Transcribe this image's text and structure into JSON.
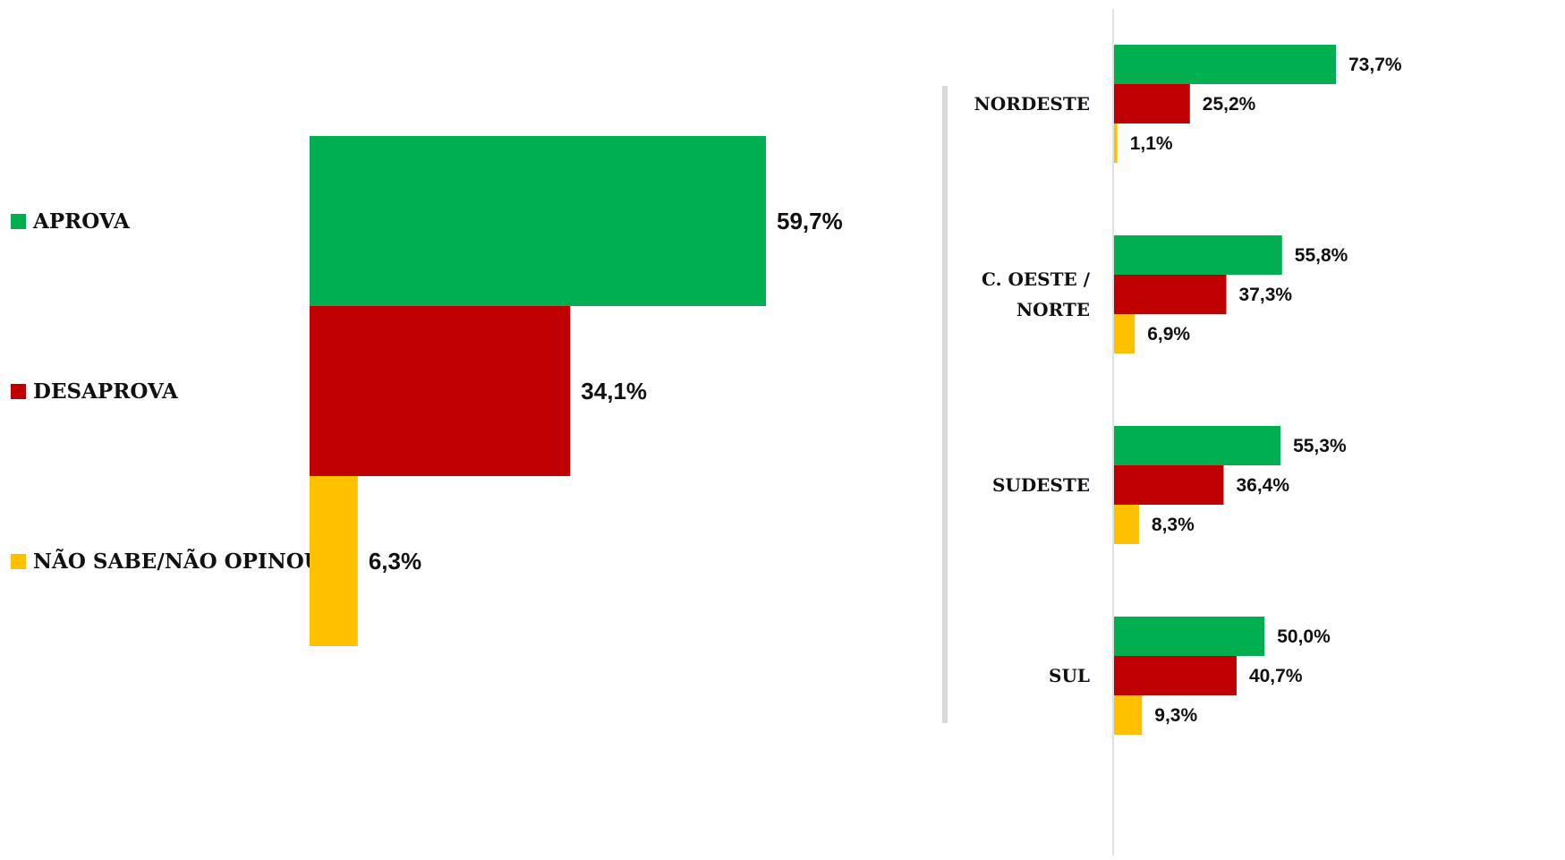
{
  "colors": {
    "aprova": "#00B050",
    "desaprova": "#C00000",
    "nao_sabe": "#FFC000",
    "divider": "#D9D9D9",
    "axis": "#D9D9D9"
  },
  "legend": [
    {
      "label": "APROVA",
      "color_key": "aprova"
    },
    {
      "label": "DESAPROVA",
      "color_key": "desaprova"
    },
    {
      "label": "NÃO SABE/NÃO OPINOU",
      "color_key": "nao_sabe"
    }
  ],
  "chart_data": [
    {
      "type": "bar",
      "orientation": "horizontal",
      "categories": [
        "APROVA",
        "DESAPROVA",
        "NÃO SABE/NÃO OPINOU"
      ],
      "values": [
        59.7,
        34.1,
        6.3
      ],
      "value_labels": [
        "59,7%",
        "34,1%",
        "6,3%"
      ],
      "legend_placement": "left",
      "grid": false
    },
    {
      "type": "bar",
      "orientation": "horizontal",
      "categories": [
        [
          "NORDESTE"
        ],
        [
          "C. OESTE /",
          "NORTE"
        ],
        [
          "SUDESTE"
        ],
        [
          "SUL"
        ]
      ],
      "series": [
        {
          "name": "APROVA",
          "values": [
            73.7,
            55.8,
            55.3,
            50.0
          ],
          "labels": [
            "73,7%",
            "55,8%",
            "55,3%",
            "50,0%"
          ]
        },
        {
          "name": "DESAPROVA",
          "values": [
            25.2,
            37.3,
            36.4,
            40.7
          ],
          "labels": [
            "25,2%",
            "37,3%",
            "36,4%",
            "40,7%"
          ]
        },
        {
          "name": "NÃO SABE/NÃO OPINOU",
          "values": [
            1.1,
            6.9,
            8.3,
            9.3
          ],
          "labels": [
            "1,1%",
            "6,9%",
            "8,3%",
            "9,3%"
          ]
        }
      ],
      "grid": false
    }
  ]
}
